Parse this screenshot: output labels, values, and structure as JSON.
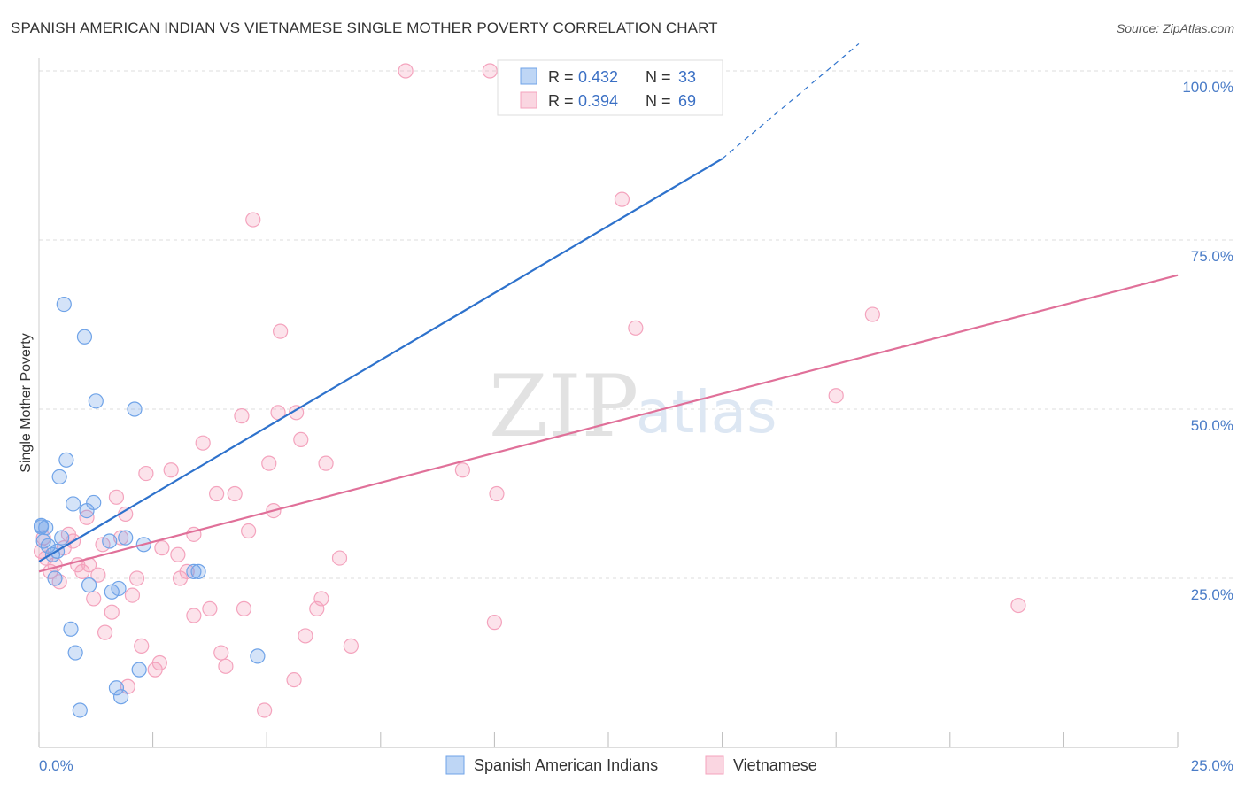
{
  "title": "SPANISH AMERICAN INDIAN VS VIETNAMESE SINGLE MOTHER POVERTY CORRELATION CHART",
  "source": "Source: ZipAtlas.com",
  "watermark": {
    "zip": "ZIP",
    "atlas": "atlas"
  },
  "chart_data": {
    "type": "scatter",
    "title": "SPANISH AMERICAN INDIAN VS VIETNAMESE SINGLE MOTHER POVERTY CORRELATION CHART",
    "xlabel": "",
    "ylabel": "Single Mother Poverty",
    "xlim": [
      0,
      25
    ],
    "ylim": [
      0,
      100
    ],
    "x_tick_labels": {
      "left": "0.0%",
      "right": "25.0%"
    },
    "y_ticks": [
      {
        "value": 25,
        "label": "25.0%"
      },
      {
        "value": 50,
        "label": "50.0%"
      },
      {
        "value": 75,
        "label": "75.0%"
      },
      {
        "value": 100,
        "label": "100.0%"
      }
    ],
    "legend_position": "top-center",
    "series": [
      {
        "name": "Spanish American Indians",
        "color": "#6fa3e8",
        "line_color": "#2e72cc",
        "R": "0.432",
        "N": "33",
        "trend": {
          "x0": 0,
          "y0": 27.5,
          "x1": 15,
          "y1": 87.0,
          "x_dash_end": 18,
          "y_dash_end": 104
        },
        "points": [
          [
            0.05,
            32.6
          ],
          [
            0.1,
            30.5
          ],
          [
            0.15,
            32.5
          ],
          [
            0.2,
            29.8
          ],
          [
            0.3,
            28.5
          ],
          [
            0.35,
            25
          ],
          [
            0.4,
            29
          ],
          [
            0.45,
            40
          ],
          [
            0.5,
            31
          ],
          [
            0.55,
            65.5
          ],
          [
            0.6,
            42.5
          ],
          [
            0.7,
            17.5
          ],
          [
            0.75,
            36
          ],
          [
            0.8,
            14
          ],
          [
            0.9,
            5.5
          ],
          [
            1.0,
            60.7
          ],
          [
            1.05,
            35
          ],
          [
            1.1,
            24
          ],
          [
            1.2,
            36.2
          ],
          [
            1.25,
            51.2
          ],
          [
            1.55,
            30.5
          ],
          [
            1.6,
            23
          ],
          [
            1.7,
            8.8
          ],
          [
            1.75,
            23.5
          ],
          [
            1.8,
            7.5
          ],
          [
            1.9,
            31
          ],
          [
            2.1,
            50
          ],
          [
            2.2,
            11.5
          ],
          [
            2.3,
            30
          ],
          [
            3.4,
            26
          ],
          [
            3.5,
            26
          ],
          [
            4.8,
            13.5
          ],
          [
            0.05,
            32.8
          ]
        ]
      },
      {
        "name": "Vietnamese",
        "color": "#f4a3bd",
        "line_color": "#e07099",
        "R": "0.394",
        "N": "69",
        "trend": {
          "x0": 0,
          "y0": 26.0,
          "x1": 25,
          "y1": 69.8
        },
        "points": [
          [
            0.05,
            29
          ],
          [
            0.1,
            31
          ],
          [
            0.15,
            28
          ],
          [
            0.25,
            26
          ],
          [
            0.35,
            27
          ],
          [
            0.45,
            24.5
          ],
          [
            0.55,
            29.5
          ],
          [
            0.65,
            31.5
          ],
          [
            0.75,
            30.5
          ],
          [
            0.85,
            27
          ],
          [
            0.95,
            26
          ],
          [
            1.05,
            34
          ],
          [
            1.1,
            27
          ],
          [
            1.2,
            22
          ],
          [
            1.3,
            25.5
          ],
          [
            1.4,
            30
          ],
          [
            1.45,
            17
          ],
          [
            1.6,
            20
          ],
          [
            1.7,
            37
          ],
          [
            1.8,
            31
          ],
          [
            1.9,
            34.5
          ],
          [
            1.95,
            9
          ],
          [
            2.05,
            22.5
          ],
          [
            2.15,
            25
          ],
          [
            2.25,
            15
          ],
          [
            2.35,
            40.5
          ],
          [
            2.55,
            11.5
          ],
          [
            2.65,
            12.5
          ],
          [
            2.7,
            29.5
          ],
          [
            2.9,
            41
          ],
          [
            3.05,
            28.5
          ],
          [
            3.1,
            25
          ],
          [
            3.25,
            26
          ],
          [
            3.4,
            31.5
          ],
          [
            3.4,
            19.5
          ],
          [
            3.6,
            45
          ],
          [
            3.75,
            20.5
          ],
          [
            3.9,
            37.5
          ],
          [
            4.0,
            14
          ],
          [
            4.1,
            12
          ],
          [
            4.3,
            37.5
          ],
          [
            4.45,
            49
          ],
          [
            4.5,
            20.5
          ],
          [
            4.6,
            32
          ],
          [
            4.7,
            78
          ],
          [
            4.95,
            5.5
          ],
          [
            5.05,
            42
          ],
          [
            5.15,
            35
          ],
          [
            5.25,
            49.5
          ],
          [
            5.3,
            61.5
          ],
          [
            5.6,
            10
          ],
          [
            5.65,
            49.5
          ],
          [
            5.75,
            45.5
          ],
          [
            5.85,
            16.5
          ],
          [
            6.1,
            20.5
          ],
          [
            6.2,
            22
          ],
          [
            6.3,
            42
          ],
          [
            6.6,
            28
          ],
          [
            6.85,
            15
          ],
          [
            8.05,
            100
          ],
          [
            9.3,
            41
          ],
          [
            9.9,
            100
          ],
          [
            10.0,
            18.5
          ],
          [
            10.05,
            37.5
          ],
          [
            12.8,
            81
          ],
          [
            13.1,
            62
          ],
          [
            17.5,
            52
          ],
          [
            18.3,
            64
          ],
          [
            21.5,
            21
          ]
        ]
      }
    ]
  }
}
